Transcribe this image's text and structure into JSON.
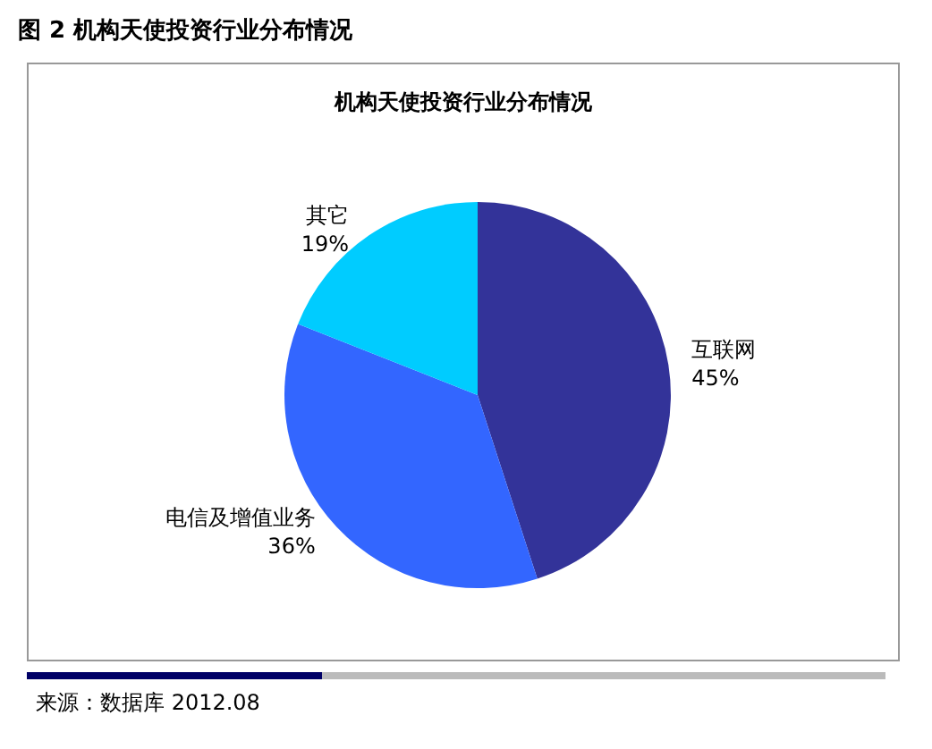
{
  "chart_data": {
    "type": "pie",
    "title": "图 2 机构天使投资行业分布情况",
    "subtitle": "机构天使投资行业分布情况",
    "categories": [
      "互联网",
      "电信及增值业务",
      "其它"
    ],
    "values": [
      45,
      36,
      19
    ],
    "colors": [
      "#333399",
      "#3366ff",
      "#00ccff"
    ],
    "value_labels": [
      "45%",
      "36%",
      "19%"
    ],
    "legend": false,
    "annotations": [
      "来源：数据库 2012.08"
    ]
  }
}
